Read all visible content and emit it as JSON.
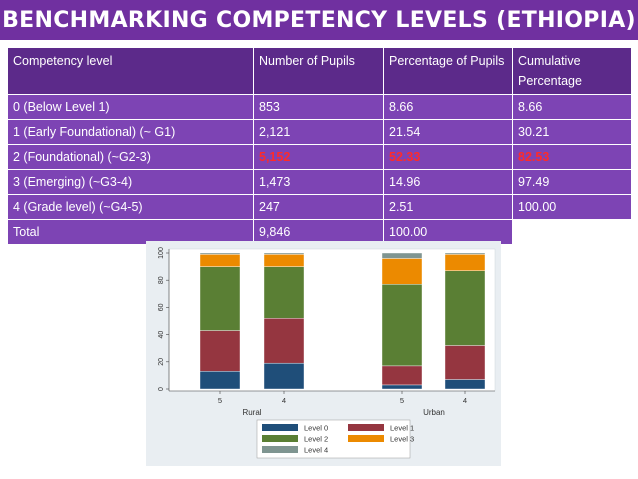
{
  "title": "BENCHMARKING COMPETENCY LEVELS (ETHIOPIA)",
  "table": {
    "headers": [
      "Competency level",
      "Number of Pupils",
      "Percentage of Pupils",
      "Cumulative Percentage"
    ],
    "rows": [
      [
        "0 (Below Level 1)",
        "853",
        "8.66",
        "8.66"
      ],
      [
        "1 (Early Foundational) (~ G1)",
        "2,121",
        "21.54",
        "30.21"
      ],
      [
        "2 (Foundational) (~G2-3)",
        "5,152",
        "52.33",
        "82.53"
      ],
      [
        "3 (Emerging) (~G3-4)",
        "1,473",
        "14.96",
        "97.49"
      ],
      [
        "4 (Grade level) (~G4-5)",
        "247",
        "2.51",
        "100.00"
      ],
      [
        "Total",
        "9,846",
        "100.00",
        ""
      ]
    ],
    "highlight_color": "#ff2a2a"
  },
  "chart_data": {
    "type": "bar",
    "stacked": true,
    "ylim": [
      0,
      100
    ],
    "yticks": [
      "0",
      "20",
      "40",
      "60",
      "80",
      "100"
    ],
    "ytick_values": [
      0,
      20,
      40,
      60,
      80,
      100
    ],
    "bars": [
      {
        "label": "5",
        "group": "Rural",
        "values": [
          13,
          30,
          47,
          9,
          1
        ]
      },
      {
        "label": "4",
        "group": "Rural",
        "values": [
          19,
          33,
          38,
          9,
          1
        ]
      },
      {
        "label": "5",
        "group": "Urban",
        "values": [
          3,
          14,
          60,
          19,
          4
        ]
      },
      {
        "label": "4",
        "group": "Urban",
        "values": [
          7,
          25,
          55,
          12,
          1
        ]
      }
    ],
    "groups": [
      "Rural",
      "Urban"
    ],
    "series": [
      {
        "name": "Level 0",
        "color": "#1f4e79"
      },
      {
        "name": "Level 1",
        "color": "#953640"
      },
      {
        "name": "Level 2",
        "color": "#5a7f34"
      },
      {
        "name": "Level 3",
        "color": "#ec8a00"
      },
      {
        "name": "Level 4",
        "color": "#7f9591"
      }
    ],
    "legend_position": "bottom"
  }
}
